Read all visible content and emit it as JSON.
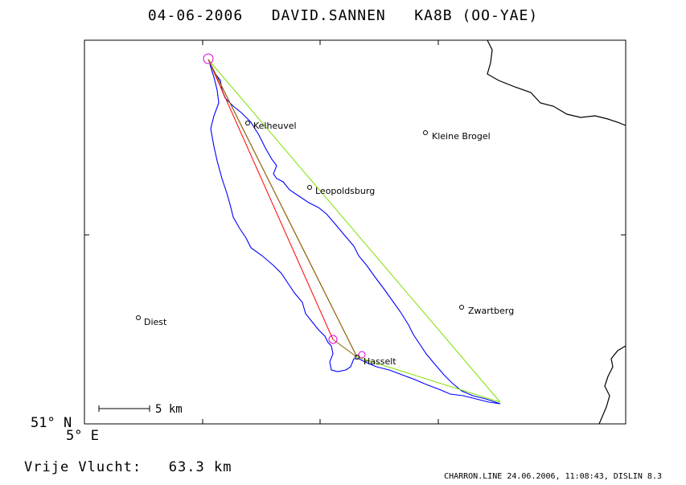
{
  "header": {
    "date": "04-06-2006",
    "pilot": "DAVID.SANNEN",
    "glider": "KA8B (OO-YAE)"
  },
  "map": {
    "places": [
      {
        "name": "Kelheuvel"
      },
      {
        "name": "Kleine Brogel"
      },
      {
        "name": "Leopoldsburg"
      },
      {
        "name": "Zwartberg"
      },
      {
        "name": "Diest"
      },
      {
        "name": "Hasselt"
      }
    ],
    "scale": {
      "label": "5 km"
    },
    "lat_label": "51° N",
    "lon_label": "5° E",
    "colors": {
      "track": "#0000ff",
      "task_leg": "#7fe000",
      "leg_red": "#ff0000",
      "leg_olive": "#8a6000",
      "turnpoint": "#e000e0",
      "border": "#000000"
    }
  },
  "summary": {
    "label": "Vrije Vlucht:",
    "distance": "63.3 km"
  },
  "footer": {
    "text": "CHARRON.LINE 24.06.2006, 11:08:43, DISLIN 8.3"
  }
}
